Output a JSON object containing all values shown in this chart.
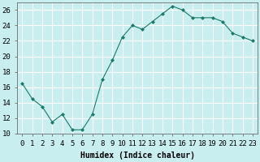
{
  "x": [
    0,
    1,
    2,
    3,
    4,
    5,
    6,
    7,
    8,
    9,
    10,
    11,
    12,
    13,
    14,
    15,
    16,
    17,
    18,
    19,
    20,
    21,
    22,
    23
  ],
  "y": [
    16.5,
    14.5,
    13.5,
    11.5,
    12.5,
    10.5,
    10.5,
    12.5,
    17.0,
    19.5,
    22.5,
    24.0,
    23.5,
    24.5,
    25.5,
    26.5,
    26.0,
    25.0,
    25.0,
    25.0,
    24.5,
    23.0,
    22.5,
    22.0
  ],
  "line_color": "#1a7a6a",
  "marker": "D",
  "marker_size": 2,
  "bg_color": "#c8eef0",
  "grid_color": "#ffffff",
  "xlabel": "Humidex (Indice chaleur)",
  "ylim": [
    10,
    27
  ],
  "xlim": [
    -0.5,
    23.5
  ],
  "yticks": [
    10,
    12,
    14,
    16,
    18,
    20,
    22,
    24,
    26
  ],
  "xtick_labels": [
    "0",
    "1",
    "2",
    "3",
    "4",
    "5",
    "6",
    "7",
    "8",
    "9",
    "10",
    "11",
    "12",
    "13",
    "14",
    "15",
    "16",
    "17",
    "18",
    "19",
    "20",
    "21",
    "22",
    "23"
  ],
  "xlabel_fontsize": 7,
  "tick_fontsize": 6.5
}
